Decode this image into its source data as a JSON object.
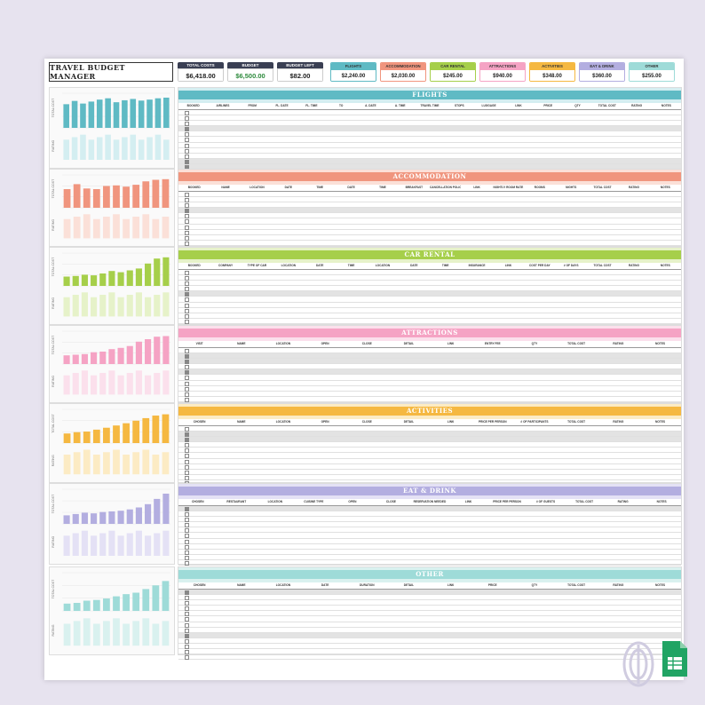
{
  "title": "TRAVEL BUDGET MANAGER",
  "stats": [
    {
      "label": "TOTAL COSTS",
      "value": "$6,418.00",
      "color": "#3a3f53"
    },
    {
      "label": "BUDGET",
      "value": "$6,500.00",
      "color": "#3a3f53",
      "value_color": "#2e8b3d"
    },
    {
      "label": "BUDGET LEFT",
      "value": "$82.00",
      "color": "#3a3f53"
    }
  ],
  "categories": [
    {
      "label": "FLIGHTS",
      "value": "$2,240.00",
      "color": "#5fbac4"
    },
    {
      "label": "ACCOMMODATION",
      "value": "$2,030.00",
      "color": "#f0957e"
    },
    {
      "label": "CAR RENTAL",
      "value": "$245.00",
      "color": "#a6cf4a"
    },
    {
      "label": "ATTRACTIONS",
      "value": "$940.00",
      "color": "#f5a3c4"
    },
    {
      "label": "ACTIVITIES",
      "value": "$348.00",
      "color": "#f5b841"
    },
    {
      "label": "EAT & DRINK",
      "value": "$360.00",
      "color": "#b3aee0"
    },
    {
      "label": "OTHER",
      "value": "$255.00",
      "color": "#9edbd8"
    }
  ],
  "sections": [
    {
      "title": "FLIGHTS",
      "color": "#5fbac4",
      "light": "#d4eef1",
      "top": 32,
      "height": 92,
      "headers": [
        "BOOKED",
        "AIRLINES",
        "FROM",
        "FL. DATE",
        "FL. TIME",
        "TO",
        "A. DATE",
        "A. TIME",
        "TRAVEL TIME",
        "STOPS",
        "LUGGAGE",
        "LINK",
        "PRICE",
        "QTY",
        "TOTAL COST",
        "RATING",
        "NOTES"
      ],
      "rows": 12,
      "highlight": [
        3,
        9,
        10
      ],
      "bars": [
        0.72,
        0.82,
        0.74,
        0.8,
        0.86,
        0.9,
        0.78,
        0.84,
        0.88,
        0.83,
        0.86,
        0.9,
        0.92
      ],
      "y_label": "TOTAL COST"
    },
    {
      "title": "ACCOMMODATION",
      "color": "#f0957e",
      "light": "#fbe0d8",
      "top": 124,
      "height": 88,
      "headers": [
        "BOOKED",
        "NAME",
        "LOCATION",
        "DATE",
        "TIME",
        "DATE",
        "TIME",
        "BREAKFAST",
        "CANCELLATION POLICY",
        "LINK",
        "NIGHTLY ROOM RATE",
        "ROOMS",
        "NIGHTS",
        "TOTAL COST",
        "RATING",
        "NOTES"
      ],
      "rows": 11,
      "highlight": [
        3
      ],
      "bars": [
        0.6,
        0.76,
        0.62,
        0.6,
        0.7,
        0.72,
        0.68,
        0.74,
        0.85,
        0.9,
        0.92
      ],
      "y_label": "TOTAL COST"
    },
    {
      "title": "CAR RENTAL",
      "color": "#a6cf4a",
      "light": "#e6f2c9",
      "top": 212,
      "height": 88,
      "headers": [
        "BOOKED",
        "COMPANY",
        "TYPE OF CAR",
        "LOCATION",
        "DATE",
        "TIME",
        "LOCATION",
        "DATE",
        "TIME",
        "INSURANCE",
        "LINK",
        "COST PER DAY",
        "# OF DAYS",
        "TOTAL COST",
        "RATING",
        "NOTES"
      ],
      "rows": 11,
      "highlight": [
        4
      ],
      "bars": [
        0.3,
        0.32,
        0.36,
        0.34,
        0.4,
        0.48,
        0.44,
        0.5,
        0.56,
        0.72,
        0.88,
        0.92
      ],
      "y_label": "TOTAL COST"
    },
    {
      "title": "ATTRACTIONS",
      "color": "#f5a3c4",
      "light": "#fbe0ec",
      "top": 300,
      "height": 88,
      "headers": [
        "VISIT",
        "NAME",
        "LOCATION",
        "OPEN",
        "CLOSE",
        "DETAIL",
        "LINK",
        "ENTRY FEE",
        "QTY",
        "TOTAL COST",
        "RATING",
        "NOTES"
      ],
      "rows": 11,
      "highlight": [
        1,
        2,
        4
      ],
      "bars": [
        0.28,
        0.3,
        0.32,
        0.38,
        0.4,
        0.48,
        0.52,
        0.58,
        0.72,
        0.8,
        0.88,
        0.9
      ],
      "y_label": "TOTAL COST"
    },
    {
      "title": "ACTIVITIES",
      "color": "#f5b841",
      "light": "#fcebc4",
      "top": 388,
      "height": 90,
      "headers": [
        "CHOSEN",
        "NAME",
        "LOCATION",
        "OPEN",
        "CLOSE",
        "DETAIL",
        "LINK",
        "PRICE PER PERSON",
        "# OF PARTICIPANTS",
        "TOTAL COST",
        "RATING",
        "NOTES"
      ],
      "rows": 11,
      "highlight": [
        1,
        2
      ],
      "bars": [
        0.3,
        0.34,
        0.36,
        0.42,
        0.48,
        0.55,
        0.62,
        0.7,
        0.78,
        0.86,
        0.9
      ],
      "y_label": "TOTAL COST"
    },
    {
      "title": "EAT & DRINK",
      "color": "#b3aee0",
      "light": "#e4e1f5",
      "top": 478,
      "height": 92,
      "headers": [
        "CHOSEN",
        "RESTAURANT",
        "LOCATION",
        "CUISINE TYPE",
        "OPEN",
        "CLOSE",
        "RESERVATION NEEDED",
        "LINK",
        "PRICE PER PERSON",
        "# OF GUESTS",
        "TOTAL COST",
        "RATING",
        "NOTES"
      ],
      "rows": 12,
      "highlight": [
        0
      ],
      "bars": [
        0.26,
        0.3,
        0.34,
        0.32,
        0.36,
        0.38,
        0.4,
        0.44,
        0.5,
        0.6,
        0.76,
        0.92
      ],
      "y_label": "TOTAL COST"
    },
    {
      "title": "OTHER",
      "color": "#9edbd8",
      "light": "#d9f1ef",
      "top": 572,
      "height": 100,
      "headers": [
        "CHOSEN",
        "NAME",
        "LOCATION",
        "DATE",
        "DURATION",
        "DETAIL",
        "LINK",
        "PRICE",
        "QTY",
        "TOTAL COST",
        "RATING",
        "NOTES"
      ],
      "rows": 13,
      "highlight": [
        0,
        8
      ],
      "bars": [
        0.2,
        0.22,
        0.28,
        0.3,
        0.34,
        0.4,
        0.46,
        0.5,
        0.6,
        0.7,
        0.82
      ],
      "y_label": "TOTAL COST"
    }
  ],
  "rating_label": "RATING"
}
